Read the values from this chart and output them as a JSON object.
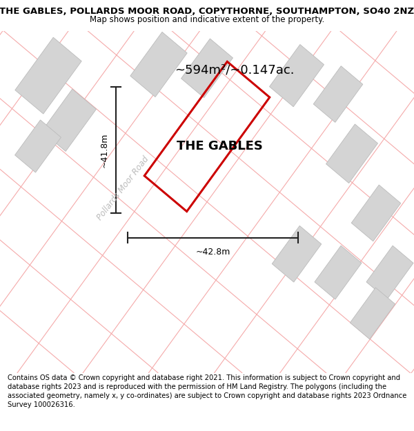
{
  "title": "THE GABLES, POLLARDS MOOR ROAD, COPYTHORNE, SOUTHAMPTON, SO40 2NZ",
  "subtitle": "Map shows position and indicative extent of the property.",
  "area_text": "~594m²/~0.147ac.",
  "label_text": "THE GABLES",
  "dim_horiz": "~42.8m",
  "dim_vert": "~41.8m",
  "road_label": "Pollards Moor Road",
  "footer": "Contains OS data © Crown copyright and database right 2021. This information is subject to Crown copyright and database rights 2023 and is reproduced with the permission of HM Land Registry. The polygons (including the associated geometry, namely x, y co-ordinates) are subject to Crown copyright and database rights 2023 Ordnance Survey 100026316.",
  "bg_color": "#f2f2f2",
  "plot_color": "#cc0000",
  "grid_line_color": "#f5aaaa",
  "building_color": "#d4d4d4",
  "building_edge": "#bbbbbb",
  "dim_line_color": "#222222",
  "title_fontsize": 9.5,
  "subtitle_fontsize": 8.5,
  "area_fontsize": 13,
  "label_fontsize": 13,
  "footer_fontsize": 7.2,
  "road_label_color": "#bbbbbb",
  "road_label_size": 8.5
}
